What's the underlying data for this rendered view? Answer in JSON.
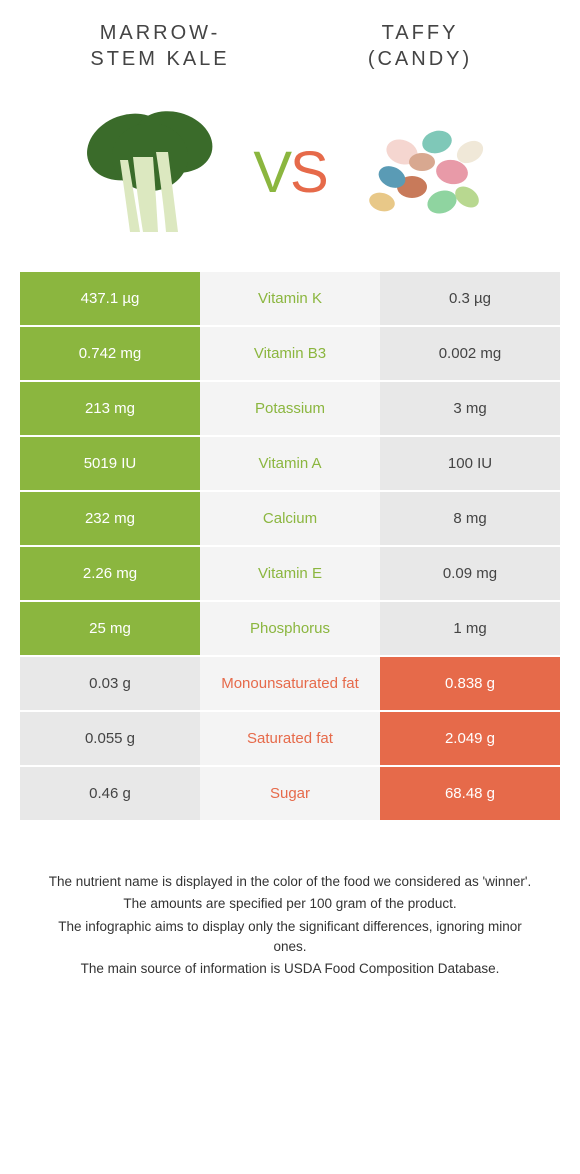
{
  "header": {
    "left_title_line1": "MARROW-",
    "left_title_line2": "STEM KALE",
    "right_title_line1": "TAFFY",
    "right_title_line2": "(CANDY)",
    "vs_v": "V",
    "vs_s": "S"
  },
  "colors": {
    "green": "#8bb63f",
    "orange": "#e66a4a",
    "gray": "#e8e8e8",
    "mid_bg": "#f4f4f4"
  },
  "rows": [
    {
      "left": "437.1 µg",
      "label": "Vitamin K",
      "right": "0.3 µg",
      "winner": "left"
    },
    {
      "left": "0.742 mg",
      "label": "Vitamin B3",
      "right": "0.002 mg",
      "winner": "left"
    },
    {
      "left": "213 mg",
      "label": "Potassium",
      "right": "3 mg",
      "winner": "left"
    },
    {
      "left": "5019 IU",
      "label": "Vitamin A",
      "right": "100 IU",
      "winner": "left"
    },
    {
      "left": "232 mg",
      "label": "Calcium",
      "right": "8 mg",
      "winner": "left"
    },
    {
      "left": "2.26 mg",
      "label": "Vitamin E",
      "right": "0.09 mg",
      "winner": "left"
    },
    {
      "left": "25 mg",
      "label": "Phosphorus",
      "right": "1 mg",
      "winner": "left"
    },
    {
      "left": "0.03 g",
      "label": "Monounsaturated fat",
      "right": "0.838 g",
      "winner": "right"
    },
    {
      "left": "0.055 g",
      "label": "Saturated fat",
      "right": "2.049 g",
      "winner": "right"
    },
    {
      "left": "0.46 g",
      "label": "Sugar",
      "right": "68.48 g",
      "winner": "right"
    }
  ],
  "footnotes": [
    "The nutrient name is displayed in the color of the food we considered as 'winner'.",
    "The amounts are specified per 100 gram of the product.",
    "The infographic aims to display only the significant differences, ignoring minor ones.",
    "The main source of information is USDA Food Composition Database."
  ]
}
